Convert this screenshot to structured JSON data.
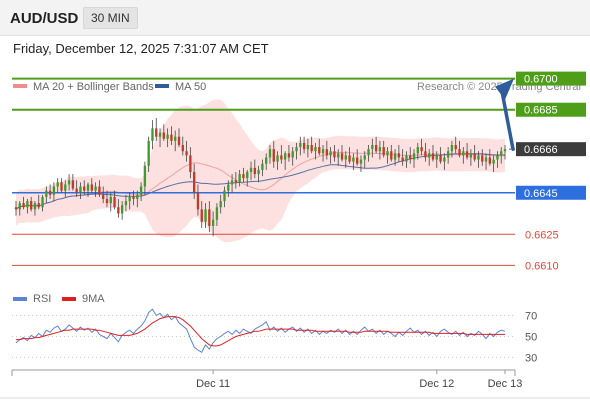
{
  "header": {
    "symbol": "AUD/USD",
    "timeframe": "30 MIN"
  },
  "timestamp": "Friday, December 12, 2025 7:31:07 AM CET",
  "chart_data": [
    {
      "type": "candlestick",
      "title": "",
      "legend": [
        {
          "name": "MA 20 + Bollinger Bands",
          "color": "#f08c8c"
        },
        {
          "name": "MA 50",
          "color": "#2f5c9a"
        }
      ],
      "copyright": "Research © 2025 Trading Central",
      "ylim": [
        0.6602,
        0.6708
      ],
      "last_price": 0.6666,
      "levels": [
        {
          "value": 0.67,
          "label": "0.6700",
          "kind": "resistance",
          "color": "#4e9e1a"
        },
        {
          "value": 0.6685,
          "label": "0.6685",
          "kind": "resistance",
          "color": "#4e9e1a"
        },
        {
          "value": 0.6666,
          "label": "0.6666",
          "kind": "last",
          "color": "#3c3c3c"
        },
        {
          "value": 0.6645,
          "label": "0.6645",
          "kind": "pivot",
          "color": "#2e6fe0"
        },
        {
          "value": 0.6625,
          "label": "0.6625",
          "kind": "support",
          "color": "#e0483c"
        },
        {
          "value": 0.661,
          "label": "0.6610",
          "kind": "support",
          "color": "#e0483c"
        }
      ],
      "forecast_arrow": {
        "from": 0.6666,
        "to": 0.67,
        "color": "#2f5c9a"
      },
      "x_ticks": [
        "Dec 11",
        "Dec 12",
        "Dec 13"
      ],
      "x_tick_index": [
        52,
        111,
        129
      ],
      "candles": [
        [
          0.6638,
          0.6641,
          0.6634,
          0.6637
        ],
        [
          0.6637,
          0.6641,
          0.6634,
          0.664
        ],
        [
          0.664,
          0.6643,
          0.6637,
          0.6638
        ],
        [
          0.6638,
          0.6642,
          0.6635,
          0.6641
        ],
        [
          0.6641,
          0.6643,
          0.6636,
          0.6637
        ],
        [
          0.6637,
          0.6641,
          0.6634,
          0.664
        ],
        [
          0.664,
          0.6644,
          0.6637,
          0.6638
        ],
        [
          0.6638,
          0.6644,
          0.6636,
          0.6643
        ],
        [
          0.6643,
          0.6648,
          0.664,
          0.6646
        ],
        [
          0.6646,
          0.6649,
          0.6642,
          0.6644
        ],
        [
          0.6644,
          0.665,
          0.6641,
          0.6648
        ],
        [
          0.6648,
          0.6652,
          0.6645,
          0.665
        ],
        [
          0.665,
          0.6652,
          0.6645,
          0.6646
        ],
        [
          0.6646,
          0.6651,
          0.6643,
          0.6649
        ],
        [
          0.6649,
          0.6654,
          0.6646,
          0.6651
        ],
        [
          0.6651,
          0.6654,
          0.6646,
          0.6647
        ],
        [
          0.6647,
          0.6651,
          0.6643,
          0.6645
        ],
        [
          0.6645,
          0.665,
          0.6642,
          0.6648
        ],
        [
          0.6648,
          0.6651,
          0.6644,
          0.6646
        ],
        [
          0.6646,
          0.665,
          0.6643,
          0.6649
        ],
        [
          0.6649,
          0.6652,
          0.6645,
          0.6646
        ],
        [
          0.6646,
          0.665,
          0.6643,
          0.6648
        ],
        [
          0.6648,
          0.6651,
          0.6643,
          0.6644
        ],
        [
          0.6644,
          0.6648,
          0.664,
          0.6642
        ],
        [
          0.6642,
          0.6646,
          0.6638,
          0.664
        ],
        [
          0.664,
          0.6645,
          0.6636,
          0.6643
        ],
        [
          0.6643,
          0.6646,
          0.6637,
          0.6638
        ],
        [
          0.6638,
          0.6642,
          0.6633,
          0.6635
        ],
        [
          0.6635,
          0.6641,
          0.6632,
          0.6639
        ],
        [
          0.6639,
          0.6644,
          0.6636,
          0.6641
        ],
        [
          0.6641,
          0.6645,
          0.6637,
          0.6643
        ],
        [
          0.6643,
          0.6646,
          0.6639,
          0.6642
        ],
        [
          0.6642,
          0.6646,
          0.6638,
          0.6644
        ],
        [
          0.6644,
          0.665,
          0.6641,
          0.6648
        ],
        [
          0.6648,
          0.666,
          0.6644,
          0.6658
        ],
        [
          0.6658,
          0.6672,
          0.6655,
          0.667
        ],
        [
          0.667,
          0.668,
          0.6666,
          0.6676
        ],
        [
          0.6676,
          0.6681,
          0.667,
          0.6672
        ],
        [
          0.6672,
          0.6676,
          0.6667,
          0.6674
        ],
        [
          0.6674,
          0.6678,
          0.667,
          0.6671
        ],
        [
          0.6671,
          0.6676,
          0.6667,
          0.6673
        ],
        [
          0.6673,
          0.6677,
          0.6668,
          0.667
        ],
        [
          0.667,
          0.6675,
          0.6665,
          0.6672
        ],
        [
          0.6672,
          0.6676,
          0.6667,
          0.6668
        ],
        [
          0.6668,
          0.6672,
          0.6663,
          0.6665
        ],
        [
          0.6665,
          0.667,
          0.666,
          0.6663
        ],
        [
          0.6663,
          0.6667,
          0.6652,
          0.6655
        ],
        [
          0.6655,
          0.6659,
          0.6642,
          0.6645
        ],
        [
          0.6645,
          0.6649,
          0.6634,
          0.6637
        ],
        [
          0.6637,
          0.6641,
          0.6628,
          0.6631
        ],
        [
          0.6631,
          0.664,
          0.6628,
          0.6637
        ],
        [
          0.6637,
          0.6641,
          0.6626,
          0.6629
        ],
        [
          0.6629,
          0.6636,
          0.6624,
          0.6632
        ],
        [
          0.6632,
          0.664,
          0.6629,
          0.6638
        ],
        [
          0.6638,
          0.6644,
          0.6635,
          0.6641
        ],
        [
          0.6641,
          0.6648,
          0.6638,
          0.6646
        ],
        [
          0.6646,
          0.6651,
          0.6643,
          0.6649
        ],
        [
          0.6649,
          0.6654,
          0.6645,
          0.6651
        ],
        [
          0.6651,
          0.6655,
          0.6647,
          0.665
        ],
        [
          0.665,
          0.6656,
          0.6648,
          0.6654
        ],
        [
          0.6654,
          0.6657,
          0.665,
          0.6652
        ],
        [
          0.6652,
          0.6656,
          0.6648,
          0.6655
        ],
        [
          0.6655,
          0.666,
          0.6651,
          0.6657
        ],
        [
          0.6657,
          0.6661,
          0.6652,
          0.6654
        ],
        [
          0.6654,
          0.6658,
          0.665,
          0.6656
        ],
        [
          0.6656,
          0.6661,
          0.6653,
          0.6659
        ],
        [
          0.6659,
          0.6664,
          0.6656,
          0.6662
        ],
        [
          0.6662,
          0.6668,
          0.6659,
          0.6666
        ],
        [
          0.6666,
          0.667,
          0.6657,
          0.666
        ],
        [
          0.666,
          0.6665,
          0.6656,
          0.6663
        ],
        [
          0.6663,
          0.6668,
          0.6659,
          0.6661
        ],
        [
          0.6661,
          0.6665,
          0.6656,
          0.6664
        ],
        [
          0.6664,
          0.6668,
          0.666,
          0.6662
        ],
        [
          0.6662,
          0.6667,
          0.6658,
          0.6665
        ],
        [
          0.6665,
          0.6669,
          0.6661,
          0.6667
        ],
        [
          0.6667,
          0.6672,
          0.6663,
          0.6669
        ],
        [
          0.6669,
          0.6672,
          0.6664,
          0.6666
        ],
        [
          0.6666,
          0.6671,
          0.6662,
          0.6668
        ],
        [
          0.6668,
          0.6672,
          0.6664,
          0.6665
        ],
        [
          0.6665,
          0.6669,
          0.6661,
          0.6667
        ],
        [
          0.6667,
          0.6671,
          0.6663,
          0.6664
        ],
        [
          0.6664,
          0.6668,
          0.666,
          0.6666
        ],
        [
          0.6666,
          0.667,
          0.6661,
          0.6663
        ],
        [
          0.6663,
          0.6667,
          0.6659,
          0.6665
        ],
        [
          0.6665,
          0.6668,
          0.666,
          0.6662
        ],
        [
          0.6662,
          0.6666,
          0.6658,
          0.6664
        ],
        [
          0.6664,
          0.6668,
          0.666,
          0.6661
        ],
        [
          0.6661,
          0.6665,
          0.6657,
          0.6663
        ],
        [
          0.6663,
          0.6667,
          0.6659,
          0.666
        ],
        [
          0.666,
          0.6664,
          0.6656,
          0.6662
        ],
        [
          0.6662,
          0.6666,
          0.6658,
          0.6659
        ],
        [
          0.6659,
          0.6663,
          0.6655,
          0.6661
        ],
        [
          0.6661,
          0.6665,
          0.6657,
          0.6663
        ],
        [
          0.6663,
          0.6668,
          0.666,
          0.6666
        ],
        [
          0.6666,
          0.6671,
          0.6662,
          0.6668
        ],
        [
          0.6668,
          0.6672,
          0.6664,
          0.6665
        ],
        [
          0.6665,
          0.667,
          0.6661,
          0.6667
        ],
        [
          0.6667,
          0.667,
          0.6662,
          0.6663
        ],
        [
          0.6663,
          0.6667,
          0.6659,
          0.6665
        ],
        [
          0.6665,
          0.6668,
          0.666,
          0.6661
        ],
        [
          0.6661,
          0.6666,
          0.6658,
          0.6664
        ],
        [
          0.6664,
          0.6668,
          0.666,
          0.6662
        ],
        [
          0.6662,
          0.6666,
          0.6658,
          0.666
        ],
        [
          0.666,
          0.6665,
          0.6657,
          0.6663
        ],
        [
          0.6663,
          0.6667,
          0.6659,
          0.6661
        ],
        [
          0.6661,
          0.6666,
          0.6657,
          0.6664
        ],
        [
          0.6664,
          0.6669,
          0.6661,
          0.6667
        ],
        [
          0.6667,
          0.6671,
          0.6663,
          0.6665
        ],
        [
          0.6665,
          0.6669,
          0.666,
          0.6662
        ],
        [
          0.6662,
          0.6666,
          0.6658,
          0.6664
        ],
        [
          0.6664,
          0.6668,
          0.666,
          0.6661
        ],
        [
          0.6661,
          0.6665,
          0.6657,
          0.6663
        ],
        [
          0.6663,
          0.6667,
          0.6659,
          0.666
        ],
        [
          0.666,
          0.6664,
          0.6656,
          0.6662
        ],
        [
          0.6662,
          0.6667,
          0.6659,
          0.6665
        ],
        [
          0.6665,
          0.667,
          0.6662,
          0.6668
        ],
        [
          0.6668,
          0.6672,
          0.6664,
          0.6666
        ],
        [
          0.6666,
          0.667,
          0.6662,
          0.6663
        ],
        [
          0.6663,
          0.6667,
          0.6659,
          0.6665
        ],
        [
          0.6665,
          0.6669,
          0.6661,
          0.6662
        ],
        [
          0.6662,
          0.6666,
          0.6658,
          0.6664
        ],
        [
          0.6664,
          0.6668,
          0.666,
          0.6661
        ],
        [
          0.6661,
          0.6665,
          0.6657,
          0.6663
        ],
        [
          0.6663,
          0.6666,
          0.6658,
          0.666
        ],
        [
          0.666,
          0.6664,
          0.6656,
          0.6662
        ],
        [
          0.6662,
          0.6666,
          0.6658,
          0.6659
        ],
        [
          0.6659,
          0.6663,
          0.6655,
          0.6661
        ],
        [
          0.6661,
          0.6665,
          0.6657,
          0.6663
        ],
        [
          0.6663,
          0.6667,
          0.6659,
          0.6665
        ],
        [
          0.6665,
          0.6668,
          0.6661,
          0.6666
        ]
      ]
    },
    {
      "type": "line",
      "title": "",
      "legend": [
        {
          "name": "RSI",
          "color": "#5b84d8"
        },
        {
          "name": "9MA",
          "color": "#e02020"
        }
      ],
      "ylim": [
        20,
        80
      ],
      "y_ticks": [
        70,
        50,
        30
      ],
      "series": [
        {
          "name": "RSI",
          "color": "#5b84d8",
          "values": [
            44,
            47,
            49,
            46,
            51,
            49,
            53,
            50,
            56,
            54,
            58,
            60,
            55,
            57,
            61,
            58,
            55,
            59,
            56,
            58,
            54,
            57,
            52,
            50,
            48,
            53,
            49,
            45,
            51,
            54,
            56,
            53,
            57,
            60,
            65,
            73,
            76,
            70,
            72,
            68,
            71,
            66,
            69,
            63,
            60,
            57,
            48,
            40,
            37,
            35,
            42,
            38,
            44,
            48,
            50,
            53,
            55,
            52,
            56,
            53,
            57,
            55,
            53,
            57,
            59,
            61,
            64,
            56,
            59,
            55,
            58,
            54,
            57,
            59,
            55,
            58,
            54,
            57,
            53,
            56,
            52,
            55,
            53,
            56,
            54,
            57,
            53,
            56,
            52,
            55,
            52,
            56,
            59,
            55,
            57,
            53,
            56,
            52,
            55,
            53,
            50,
            54,
            51,
            55,
            58,
            54,
            56,
            52,
            55,
            51,
            54,
            50,
            55,
            57,
            54,
            52,
            55,
            51,
            54,
            50,
            53,
            51,
            55,
            52,
            48,
            53,
            50,
            54,
            56,
            55
          ]
        },
        {
          "name": "9MA",
          "color": "#e02020",
          "values": [
            47,
            47,
            48,
            48,
            48,
            49,
            49,
            50,
            51,
            52,
            53,
            54,
            55,
            56,
            56,
            57,
            57,
            57,
            57,
            57,
            57,
            56,
            56,
            55,
            54,
            53,
            52,
            51,
            51,
            51,
            51,
            52,
            53,
            55,
            57,
            60,
            63,
            65,
            67,
            68,
            69,
            69,
            69,
            68,
            66,
            63,
            60,
            56,
            52,
            48,
            45,
            42,
            41,
            41,
            42,
            44,
            46,
            48,
            50,
            51,
            52,
            53,
            54,
            55,
            55,
            56,
            57,
            57,
            57,
            57,
            57,
            57,
            57,
            57,
            56,
            56,
            56,
            56,
            56,
            55,
            55,
            55,
            55,
            55,
            55,
            55,
            55,
            55,
            54,
            54,
            54,
            54,
            55,
            55,
            55,
            55,
            55,
            55,
            55,
            54,
            54,
            54,
            54,
            54,
            54,
            54,
            54,
            54,
            54,
            54,
            53,
            53,
            53,
            53,
            53,
            53,
            53,
            53,
            53,
            52,
            52,
            52,
            52,
            52,
            52,
            52,
            52,
            52,
            52,
            52
          ]
        }
      ]
    }
  ]
}
